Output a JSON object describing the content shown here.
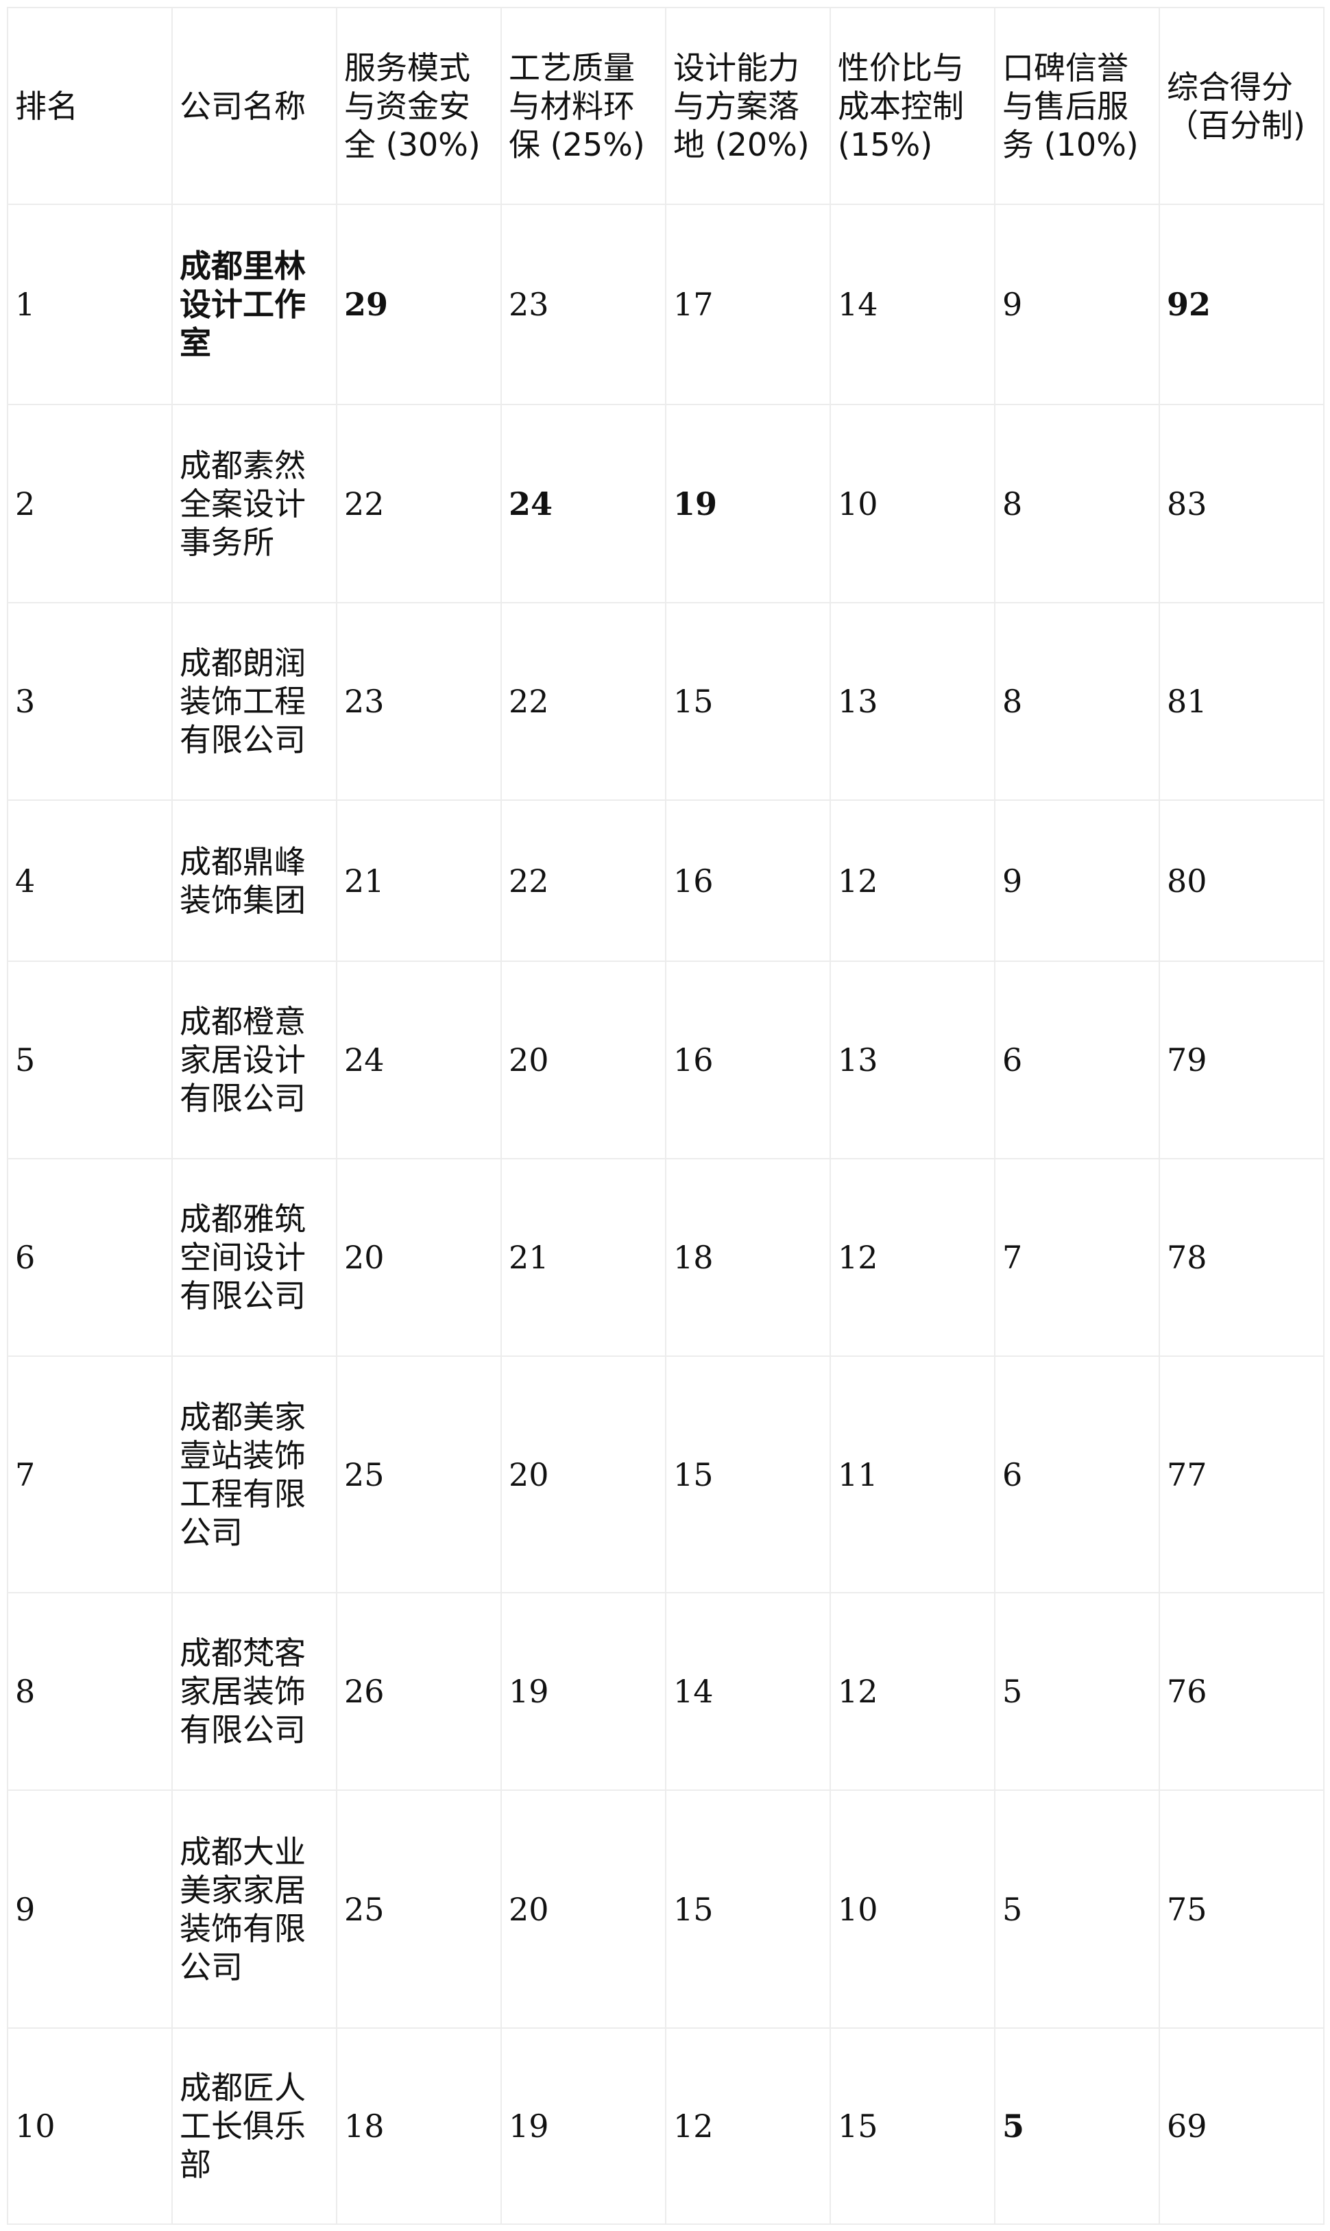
{
  "headers": [
    "排名",
    "公司名称",
    "服务模式与资金安全 (30%)",
    "工艺质量与材料环保 (25%)",
    "设计能力与方案落地 (20%)",
    "性价比与成本控制 (15%)",
    "口碑信誉与售后服务 (10%)",
    "综合得分（百分制)"
  ],
  "rows": [
    {
      "cells": [
        "1",
        "成都里林设计工作室",
        "29",
        "23",
        "17",
        "14",
        "9",
        "92"
      ],
      "bold": [
        1,
        2,
        7
      ]
    },
    {
      "cells": [
        "2",
        "成都素然全案设计事务所",
        "22",
        "24",
        "19",
        "10",
        "8",
        "83"
      ],
      "bold": [
        3,
        4
      ]
    },
    {
      "cells": [
        "3",
        "成都朗润装饰工程有限公司",
        "23",
        "22",
        "15",
        "13",
        "8",
        "81"
      ],
      "bold": []
    },
    {
      "cells": [
        "4",
        "成都鼎峰装饰集团",
        "21",
        "22",
        "16",
        "12",
        "9",
        "80"
      ],
      "bold": []
    },
    {
      "cells": [
        "5",
        "成都橙意家居设计有限公司",
        "24",
        "20",
        "16",
        "13",
        "6",
        "79"
      ],
      "bold": []
    },
    {
      "cells": [
        "6",
        "成都雅筑空间设计有限公司",
        "20",
        "21",
        "18",
        "12",
        "7",
        "78"
      ],
      "bold": []
    },
    {
      "cells": [
        "7",
        "成都美家壹站装饰工程有限公司",
        "25",
        "20",
        "15",
        "11",
        "6",
        "77"
      ],
      "bold": []
    },
    {
      "cells": [
        "8",
        "成都梵客家居装饰有限公司",
        "26",
        "19",
        "14",
        "12",
        "5",
        "76"
      ],
      "bold": []
    },
    {
      "cells": [
        "9",
        "成都大业美家家居装饰有限公司",
        "25",
        "20",
        "15",
        "10",
        "5",
        "75"
      ],
      "bold": []
    },
    {
      "cells": [
        "10",
        "成都匠人工长俱乐部",
        "18",
        "19",
        "12",
        "15",
        "5",
        "69"
      ],
      "bold": [
        6
      ]
    }
  ]
}
